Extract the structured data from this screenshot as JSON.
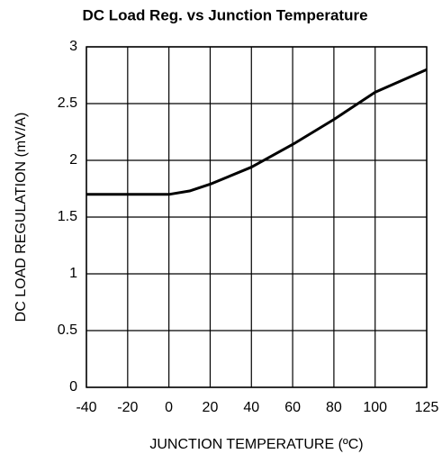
{
  "chart_data": {
    "type": "line",
    "title": "DC Load Reg. vs Junction Temperature",
    "x_label": "JUNCTION TEMPERATURE (ºC)",
    "y_label": "DC LOAD REGULATION (mV/A)",
    "x": [
      -40,
      -20,
      0,
      10,
      20,
      40,
      60,
      80,
      100,
      125
    ],
    "series": [
      {
        "color": "#000000",
        "values": [
          1.7,
          1.7,
          1.7,
          1.73,
          1.79,
          1.94,
          2.14,
          2.36,
          2.6,
          2.8
        ]
      }
    ],
    "xlim": [
      -40,
      125
    ],
    "xticks": [
      -40,
      -20,
      0,
      20,
      40,
      60,
      80,
      100,
      125
    ],
    "ylim": [
      0,
      3
    ],
    "yticks": [
      0,
      0.5,
      1,
      1.5,
      2,
      2.5,
      3
    ],
    "grid": true
  }
}
